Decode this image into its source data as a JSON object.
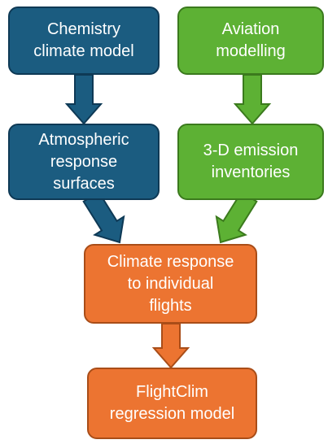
{
  "nodes": [
    {
      "lines": [
        "Chemistry",
        "climate model"
      ]
    },
    {
      "lines": [
        "Aviation",
        "modelling"
      ]
    },
    {
      "lines": [
        "Atmospheric",
        "response",
        "surfaces"
      ]
    },
    {
      "lines": [
        "3-D emission",
        "inventories"
      ]
    },
    {
      "lines": [
        "Climate response",
        "to individual",
        "flights"
      ]
    },
    {
      "lines": [
        "FlightClim",
        "regression model"
      ]
    }
  ]
}
